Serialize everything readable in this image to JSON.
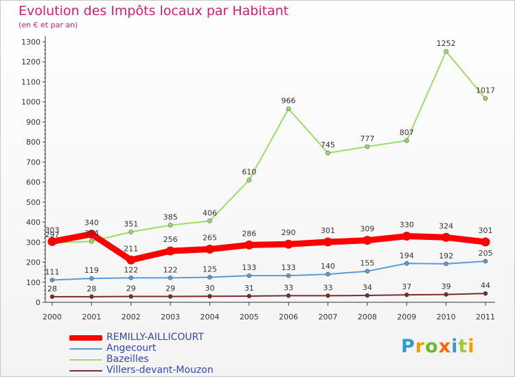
{
  "title": "Evolution des Impôts locaux par Habitant",
  "subtitle": "(en € et par an)",
  "logo": {
    "text": [
      "P",
      "r",
      "o",
      "x",
      "i",
      "t",
      "i"
    ],
    "colors": [
      "#3399cc",
      "#ff9900",
      "#66bb33",
      "#ff6600",
      "#3399cc",
      "#99cc33",
      "#ff9900"
    ]
  },
  "chart_data": {
    "type": "line",
    "title": "Evolution des Impôts locaux par Habitant",
    "subtitle": "(en € et par an)",
    "x": [
      "2000",
      "2001",
      "2002",
      "2003",
      "2004",
      "2005",
      "2006",
      "2007",
      "2008",
      "2009",
      "2010",
      "2011"
    ],
    "ylim": [
      0,
      1300
    ],
    "yticks": [
      "0",
      "100",
      "200",
      "300",
      "400",
      "500",
      "600",
      "700",
      "800",
      "900",
      "1000",
      "1100",
      "1200",
      "1300"
    ],
    "grid": false,
    "legend_position": "bottom-left",
    "series": [
      {
        "name": "REMILLY-AILLICOURT",
        "color": "#ff0000",
        "values": [
          303,
          340,
          211,
          256,
          265,
          286,
          290,
          301,
          309,
          330,
          324,
          301
        ],
        "labels": [
          "303",
          "340",
          "211",
          "256",
          "265",
          "286",
          "290",
          "301",
          "309",
          "330",
          "324",
          "301"
        ]
      },
      {
        "name": "Angecourt",
        "color": "#5b9bd5",
        "values": [
          111,
          119,
          122,
          122,
          125,
          133,
          133,
          140,
          155,
          194,
          192,
          205
        ],
        "labels": [
          "111",
          "119",
          "122",
          "122",
          "125",
          "133",
          "133",
          "140",
          "155",
          "194",
          "192",
          "205"
        ]
      },
      {
        "name": "Bazeilles",
        "color": "#99dd66",
        "values": [
          297,
          304,
          351,
          385,
          406,
          610,
          966,
          745,
          777,
          807,
          1252,
          1017
        ],
        "labels": [
          "297",
          "304",
          "351",
          "385",
          "406",
          "610",
          "966",
          "745",
          "777",
          "807",
          "1252",
          "1017"
        ]
      },
      {
        "name": "Villers-devant-Mouzon",
        "color": "#7a2a2a",
        "values": [
          28,
          28,
          29,
          29,
          30,
          31,
          33,
          33,
          34,
          37,
          39,
          44
        ],
        "labels": [
          "28",
          "28",
          "29",
          "29",
          "30",
          "31",
          "33",
          "33",
          "34",
          "37",
          "39",
          "44"
        ]
      }
    ]
  }
}
